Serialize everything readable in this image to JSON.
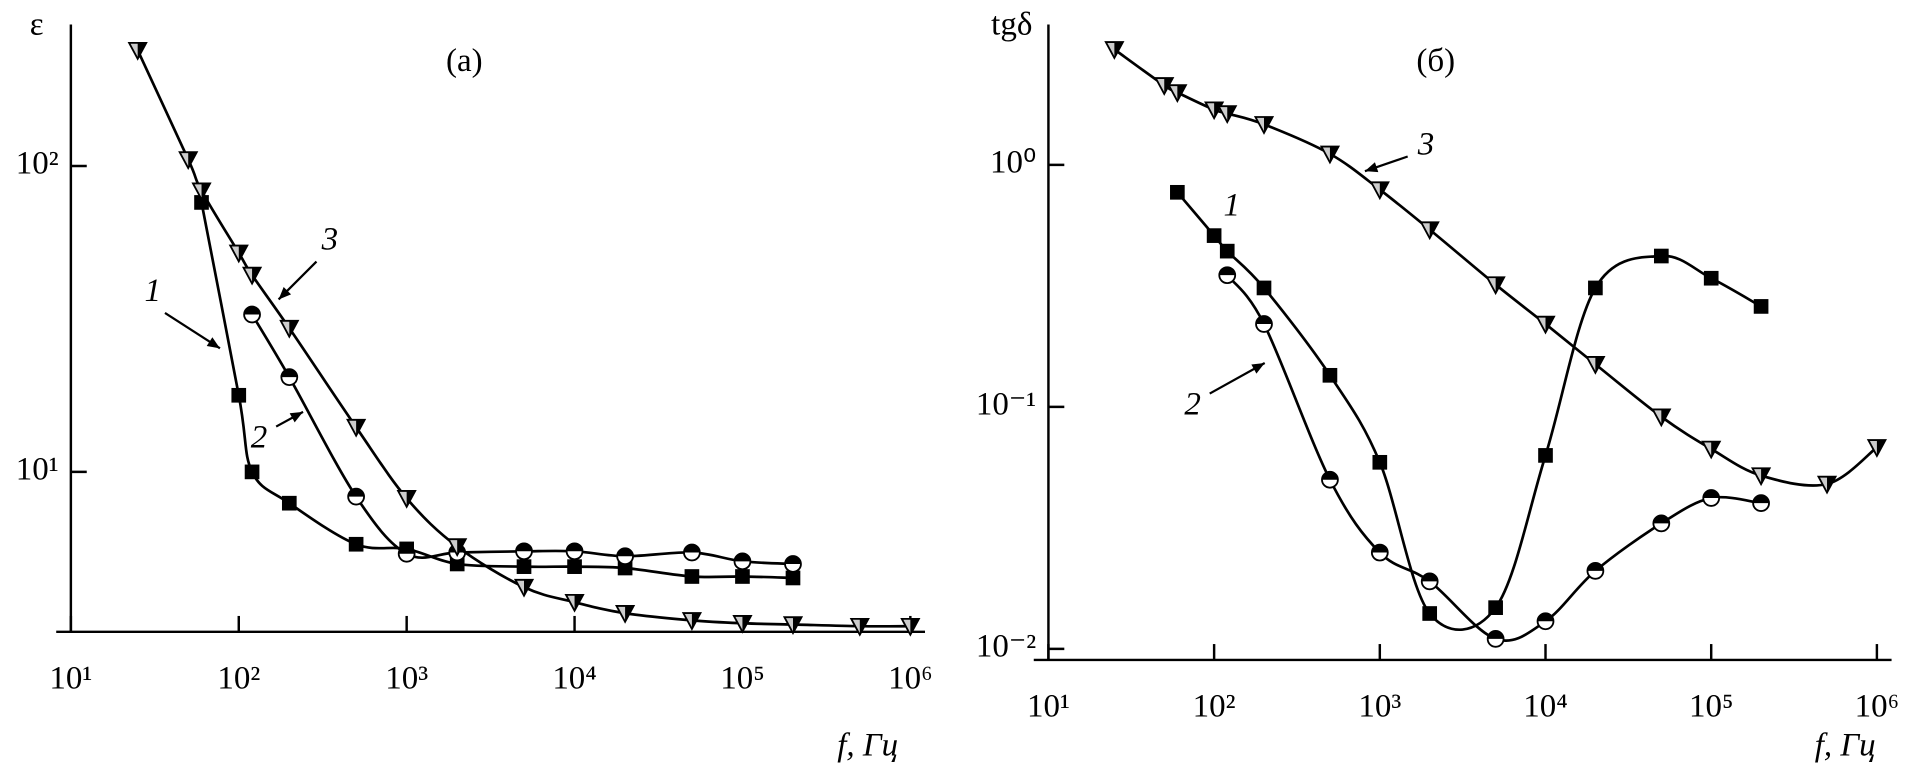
{
  "chart_data": [
    {
      "type": "line",
      "title": "(а)",
      "ylabel": "ε",
      "xlabel": "f, Гц",
      "xscale": "log",
      "yscale": "log",
      "xlim": [
        10,
        1000000
      ],
      "ylim": [
        3,
        290
      ],
      "xticks": [
        {
          "value": 10,
          "label": "10¹"
        },
        {
          "value": 100,
          "label": "10²"
        },
        {
          "value": 1000,
          "label": "10³"
        },
        {
          "value": 10000,
          "label": "10⁴"
        },
        {
          "value": 100000,
          "label": "10⁵"
        },
        {
          "value": 1000000,
          "label": "10⁶"
        }
      ],
      "yticks": [
        {
          "value": 10,
          "label": "10¹"
        },
        {
          "value": 100,
          "label": "10²"
        }
      ],
      "series": [
        {
          "name": "1",
          "marker": "square",
          "color": "#000000",
          "x": [
            60,
            100,
            120,
            200,
            500,
            1000,
            2000,
            5000,
            10000,
            20000,
            50000,
            100000,
            200000
          ],
          "values": [
            76,
            17.8,
            10,
            7.9,
            5.8,
            5.6,
            5.0,
            4.9,
            4.9,
            4.85,
            4.55,
            4.55,
            4.5
          ]
        },
        {
          "name": "2",
          "marker": "half-circle",
          "color": "#000000",
          "x": [
            120,
            200,
            500,
            1000,
            2000,
            5000,
            10000,
            20000,
            50000,
            100000,
            200000
          ],
          "values": [
            32.7,
            20.4,
            8.3,
            5.4,
            5.45,
            5.5,
            5.5,
            5.3,
            5.45,
            5.1,
            5.0
          ]
        },
        {
          "name": "3",
          "marker": "triangle",
          "color": "#000000",
          "x": [
            25,
            50,
            60,
            100,
            120,
            200,
            500,
            1000,
            2000,
            5000,
            10000,
            20000,
            50000,
            100000,
            200000,
            500000,
            1000000
          ],
          "values": [
            239,
            105,
            83,
            52,
            44,
            29.5,
            14,
            8.2,
            5.7,
            4.2,
            3.75,
            3.45,
            3.27,
            3.2,
            3.17,
            3.13,
            3.13
          ]
        }
      ]
    },
    {
      "type": "line",
      "title": "(б)",
      "ylabel": "tgδ",
      "xlabel": "f, Гц",
      "xscale": "log",
      "yscale": "log",
      "xlim": [
        10,
        1000000
      ],
      "ylim": [
        0.009,
        3.8
      ],
      "xticks": [
        {
          "value": 10,
          "label": "10¹"
        },
        {
          "value": 100,
          "label": "10²"
        },
        {
          "value": 1000,
          "label": "10³"
        },
        {
          "value": 10000,
          "label": "10⁴"
        },
        {
          "value": 100000,
          "label": "10⁵"
        },
        {
          "value": 1000000,
          "label": "10⁶"
        }
      ],
      "yticks": [
        {
          "value": 0.01,
          "label": "10⁻²"
        },
        {
          "value": 0.1,
          "label": "10⁻¹"
        },
        {
          "value": 1,
          "label": "10⁰"
        }
      ],
      "series": [
        {
          "name": "1",
          "marker": "square",
          "color": "#000000",
          "x": [
            60,
            100,
            120,
            200,
            500,
            1000,
            2000,
            5000,
            10000,
            20000,
            50000,
            100000,
            200000
          ],
          "values": [
            0.77,
            0.51,
            0.44,
            0.31,
            0.135,
            0.059,
            0.014,
            0.0148,
            0.063,
            0.31,
            0.42,
            0.34,
            0.26
          ]
        },
        {
          "name": "2",
          "marker": "half-circle",
          "color": "#000000",
          "x": [
            120,
            200,
            500,
            1000,
            2000,
            5000,
            10000,
            20000,
            50000,
            100000,
            200000
          ],
          "values": [
            0.35,
            0.22,
            0.05,
            0.025,
            0.019,
            0.011,
            0.013,
            0.021,
            0.033,
            0.042,
            0.04
          ]
        },
        {
          "name": "3",
          "marker": "triangle",
          "color": "#000000",
          "x": [
            25,
            50,
            60,
            100,
            120,
            200,
            500,
            1000,
            2000,
            5000,
            10000,
            20000,
            50000,
            100000,
            200000,
            500000,
            1000000
          ],
          "values": [
            3.0,
            2.13,
            1.99,
            1.69,
            1.63,
            1.47,
            1.11,
            0.79,
            0.54,
            0.32,
            0.22,
            0.15,
            0.091,
            0.067,
            0.052,
            0.048,
            0.068
          ]
        }
      ]
    }
  ]
}
